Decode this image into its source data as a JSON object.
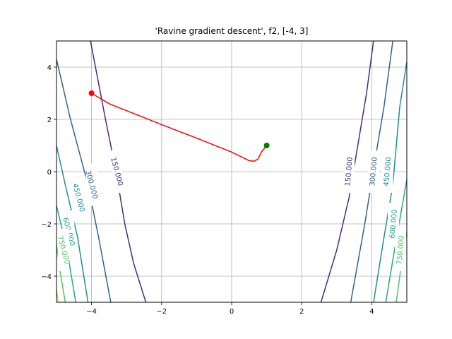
{
  "chart_data": {
    "type": "contour",
    "title": "'Ravine gradient descent', f2, [-4, 3]",
    "xlabel": "",
    "ylabel": "",
    "xlim": [
      -5,
      5
    ],
    "ylim": [
      -5,
      5
    ],
    "x_ticks": [
      -4,
      -2,
      0,
      2,
      4
    ],
    "y_ticks": [
      -4,
      -2,
      0,
      2,
      4
    ],
    "x_tick_labels": [
      "−4",
      "−2",
      "0",
      "2",
      "4"
    ],
    "y_tick_labels": [
      "−4",
      "−2",
      "0",
      "2",
      "4"
    ],
    "grid": true,
    "contour_levels": [
      {
        "level": 150,
        "label": "150.000",
        "color": "#472c7a",
        "curves": [
          [
            [
              -4.03,
              5.0
            ],
            [
              -3.6,
              2.0
            ],
            [
              -3.3,
              0.0
            ],
            [
              -3.05,
              -2.0
            ],
            [
              -2.8,
              -3.5
            ],
            [
              -2.45,
              -5.0
            ]
          ],
          [
            [
              2.55,
              -5.0
            ],
            [
              3.0,
              -3.0
            ],
            [
              3.35,
              -1.0
            ],
            [
              3.6,
              1.0
            ],
            [
              3.85,
              3.0
            ],
            [
              4.05,
              5.0
            ]
          ]
        ],
        "labels_at": [
          [
            -3.28,
            0.0
          ],
          [
            3.35,
            0.0
          ]
        ]
      },
      {
        "level": 300,
        "label": "300.000",
        "color": "#34618d",
        "curves": [
          [
            [
              -5.0,
              4.3
            ],
            [
              -4.6,
              2.0
            ],
            [
              -4.1,
              -0.5
            ],
            [
              -3.8,
              -2.5
            ],
            [
              -3.45,
              -5.0
            ]
          ],
          [
            [
              3.4,
              -5.0
            ],
            [
              3.8,
              -2.0
            ],
            [
              4.1,
              0.5
            ],
            [
              4.35,
              2.5
            ],
            [
              4.6,
              5.0
            ]
          ]
        ],
        "labels_at": [
          [
            -4.0,
            -0.5
          ],
          [
            4.05,
            0.0
          ]
        ]
      },
      {
        "level": 450,
        "label": "450.000",
        "color": "#218f8c",
        "curves": [
          [
            [
              -5.0,
              1.0
            ],
            [
              -4.75,
              -0.5
            ],
            [
              -4.4,
              -2.5
            ],
            [
              -4.1,
              -5.0
            ]
          ],
          [
            [
              4.05,
              -5.0
            ],
            [
              4.35,
              -2.5
            ],
            [
              4.6,
              -0.5
            ],
            [
              4.8,
              2.5
            ],
            [
              5.0,
              4.2
            ]
          ]
        ],
        "labels_at": [
          [
            -4.37,
            -1.0
          ],
          [
            4.45,
            0.0
          ]
        ]
      },
      {
        "level": 600,
        "label": "600.000",
        "color": "#24a884",
        "curves": [
          [
            [
              -5.0,
              -1.3
            ],
            [
              -4.7,
              -3.0
            ],
            [
              -4.45,
              -5.0
            ]
          ],
          [
            [
              4.4,
              -5.0
            ],
            [
              4.65,
              -3.0
            ],
            [
              5.0,
              -0.3
            ]
          ]
        ],
        "labels_at": [
          [
            -4.65,
            -2.3
          ],
          [
            4.62,
            -2.0
          ]
        ]
      },
      {
        "level": 750,
        "label": "750.000",
        "color": "#52c569",
        "curves": [
          [
            [
              -5.0,
              -2.8
            ],
            [
              -4.9,
              -3.8
            ],
            [
              -4.75,
              -5.0
            ]
          ],
          [
            [
              4.7,
              -5.0
            ],
            [
              4.85,
              -3.5
            ],
            [
              5.0,
              -2.3
            ]
          ]
        ],
        "labels_at": [
          [
            -4.8,
            -3.0
          ],
          [
            4.82,
            -3.0
          ]
        ]
      },
      {
        "level": 900,
        "label": "",
        "color": "#a8db34",
        "curves": [
          [
            [
              -5.0,
              -4.5
            ],
            [
              -4.95,
              -5.0
            ]
          ]
        ],
        "labels_at": []
      }
    ],
    "series": [
      {
        "type": "line",
        "color": "#ff0000",
        "points": [
          [
            -4.0,
            3.0
          ],
          [
            -3.5,
            2.6
          ],
          [
            -2.0,
            1.8
          ],
          [
            -1.0,
            1.28
          ],
          [
            0.0,
            0.75
          ],
          [
            0.5,
            0.42
          ],
          [
            0.65,
            0.4
          ],
          [
            0.75,
            0.48
          ],
          [
            0.85,
            0.75
          ],
          [
            1.0,
            1.0
          ]
        ]
      }
    ],
    "markers": [
      {
        "x": -4.0,
        "y": 3.0,
        "color": "#ff0000"
      },
      {
        "x": 1.0,
        "y": 1.0,
        "color": "#008000"
      }
    ]
  }
}
